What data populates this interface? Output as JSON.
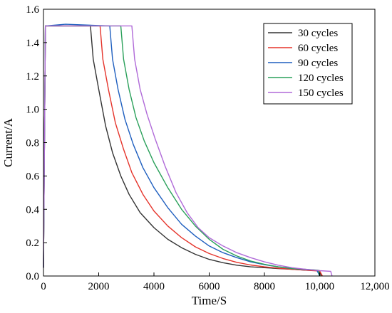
{
  "chart_data": {
    "type": "line",
    "xlabel": "Time/S",
    "ylabel": "Current/A",
    "xlim": [
      0,
      12000
    ],
    "ylim": [
      0,
      1.6
    ],
    "xticks": [
      0,
      2000,
      4000,
      6000,
      8000,
      10000,
      12000
    ],
    "xtick_labels": [
      "0",
      "2000",
      "4000",
      "6000",
      "8000",
      "10,000",
      "12,000"
    ],
    "yticks": [
      0.0,
      0.2,
      0.4,
      0.6,
      0.8,
      1.0,
      1.2,
      1.4,
      1.6
    ],
    "ytick_labels": [
      "0.0",
      "0.2",
      "0.4",
      "0.6",
      "0.8",
      "1.0",
      "1.2",
      "1.4",
      "1.6"
    ],
    "grid": false,
    "legend_position": "top-right",
    "series": [
      {
        "name": "30 cycles",
        "color": "#333333",
        "points": [
          [
            0,
            0.05
          ],
          [
            70,
            1.5
          ],
          [
            1700,
            1.5
          ],
          [
            1800,
            1.3
          ],
          [
            2000,
            1.12
          ],
          [
            2250,
            0.9
          ],
          [
            2500,
            0.74
          ],
          [
            2800,
            0.6
          ],
          [
            3100,
            0.49
          ],
          [
            3500,
            0.38
          ],
          [
            4000,
            0.29
          ],
          [
            4500,
            0.22
          ],
          [
            5000,
            0.17
          ],
          [
            5500,
            0.13
          ],
          [
            6000,
            0.1
          ],
          [
            6500,
            0.08
          ],
          [
            7000,
            0.065
          ],
          [
            7500,
            0.055
          ],
          [
            8000,
            0.05
          ],
          [
            8500,
            0.045
          ],
          [
            9000,
            0.04
          ],
          [
            9500,
            0.035
          ],
          [
            10000,
            0.032
          ],
          [
            10050,
            0.0
          ]
        ]
      },
      {
        "name": "60 cycles",
        "color": "#e5332a",
        "points": [
          [
            0,
            0.05
          ],
          [
            70,
            1.5
          ],
          [
            2050,
            1.5
          ],
          [
            2150,
            1.3
          ],
          [
            2350,
            1.12
          ],
          [
            2600,
            0.92
          ],
          [
            2900,
            0.76
          ],
          [
            3200,
            0.62
          ],
          [
            3600,
            0.49
          ],
          [
            4000,
            0.39
          ],
          [
            4500,
            0.3
          ],
          [
            5000,
            0.23
          ],
          [
            5500,
            0.175
          ],
          [
            6000,
            0.135
          ],
          [
            6500,
            0.105
          ],
          [
            7000,
            0.082
          ],
          [
            7500,
            0.066
          ],
          [
            8000,
            0.055
          ],
          [
            8500,
            0.047
          ],
          [
            9000,
            0.04
          ],
          [
            9500,
            0.035
          ],
          [
            10000,
            0.03
          ],
          [
            10100,
            0.0
          ]
        ]
      },
      {
        "name": "90 cycles",
        "color": "#1f5fbf",
        "points": [
          [
            0,
            0.05
          ],
          [
            70,
            1.5
          ],
          [
            800,
            1.51
          ],
          [
            2400,
            1.5
          ],
          [
            2500,
            1.3
          ],
          [
            2700,
            1.12
          ],
          [
            2950,
            0.94
          ],
          [
            3250,
            0.79
          ],
          [
            3600,
            0.65
          ],
          [
            4000,
            0.53
          ],
          [
            4500,
            0.41
          ],
          [
            5000,
            0.31
          ],
          [
            5500,
            0.24
          ],
          [
            6000,
            0.18
          ],
          [
            6500,
            0.14
          ],
          [
            7000,
            0.11
          ],
          [
            7500,
            0.085
          ],
          [
            8000,
            0.068
          ],
          [
            8500,
            0.055
          ],
          [
            9000,
            0.045
          ],
          [
            9500,
            0.038
          ],
          [
            9900,
            0.035
          ],
          [
            10000,
            0.0
          ]
        ]
      },
      {
        "name": "120 cycles",
        "color": "#2aa05a",
        "points": [
          [
            0,
            0.05
          ],
          [
            70,
            1.5
          ],
          [
            2800,
            1.5
          ],
          [
            2900,
            1.3
          ],
          [
            3100,
            1.12
          ],
          [
            3350,
            0.95
          ],
          [
            3650,
            0.81
          ],
          [
            4000,
            0.68
          ],
          [
            4500,
            0.53
          ],
          [
            5000,
            0.4
          ],
          [
            5500,
            0.3
          ],
          [
            6000,
            0.22
          ],
          [
            6500,
            0.16
          ],
          [
            7000,
            0.12
          ],
          [
            7500,
            0.09
          ],
          [
            8000,
            0.07
          ],
          [
            8500,
            0.055
          ],
          [
            9000,
            0.045
          ],
          [
            9500,
            0.04
          ],
          [
            9950,
            0.035
          ],
          [
            10000,
            0.0
          ]
        ]
      },
      {
        "name": "150 cycles",
        "color": "#b06ad8",
        "points": [
          [
            0,
            0.05
          ],
          [
            70,
            1.5
          ],
          [
            3200,
            1.5
          ],
          [
            3300,
            1.3
          ],
          [
            3500,
            1.12
          ],
          [
            3750,
            0.97
          ],
          [
            4050,
            0.82
          ],
          [
            4400,
            0.66
          ],
          [
            4800,
            0.5
          ],
          [
            5200,
            0.38
          ],
          [
            5600,
            0.29
          ],
          [
            6000,
            0.23
          ],
          [
            6500,
            0.18
          ],
          [
            7000,
            0.14
          ],
          [
            7500,
            0.11
          ],
          [
            8000,
            0.085
          ],
          [
            8500,
            0.065
          ],
          [
            9000,
            0.05
          ],
          [
            9500,
            0.04
          ],
          [
            10000,
            0.032
          ],
          [
            10400,
            0.028
          ],
          [
            10450,
            0.0
          ]
        ]
      }
    ]
  }
}
